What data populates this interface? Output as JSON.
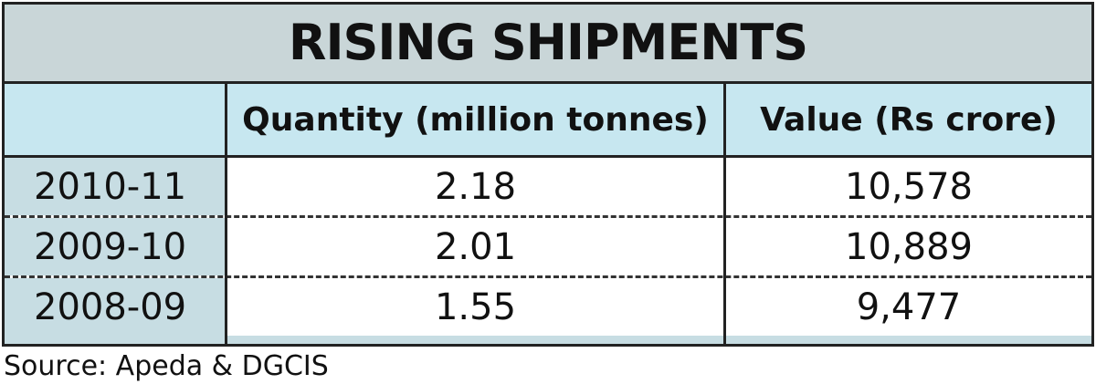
{
  "title": "RISING SHIPMENTS",
  "source": "Source: Apeda & DGCIS",
  "colors": {
    "title_band": "#c9d6d8",
    "header_band": "#c7e7f0",
    "year_column": "#c7dde3",
    "border": "#222222"
  },
  "chart_data": {
    "type": "table",
    "title": "RISING SHIPMENTS",
    "columns": [
      "",
      "Quantity (million tonnes)",
      "Value (Rs crore)"
    ],
    "rows": [
      {
        "label": "2010-11",
        "quantity": "2.18",
        "value": "10,578"
      },
      {
        "label": "2009-10",
        "quantity": "2.01",
        "value": "10,889"
      },
      {
        "label": "2008-09",
        "quantity": "1.55",
        "value": "9,477"
      }
    ]
  }
}
